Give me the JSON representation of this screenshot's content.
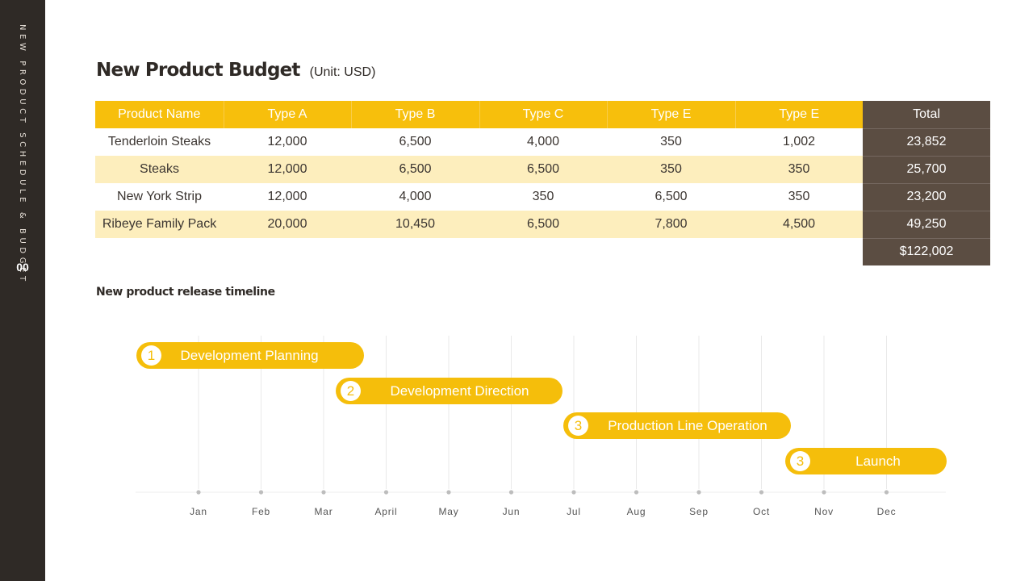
{
  "sidebar": {
    "title": "NEW PRODUCT SCHEDULE & BUDGET",
    "page_number": "00"
  },
  "header": {
    "title": "New Product Budget",
    "unit": "(Unit: USD)"
  },
  "budget_table": {
    "columns": [
      "Product Name",
      "Type A",
      "Type B",
      "Type C",
      "Type E",
      "Type E",
      "Total"
    ],
    "rows": [
      [
        "Tenderloin Steaks",
        "12,000",
        "6,500",
        "4,000",
        "350",
        "1,002",
        "23,852"
      ],
      [
        "Steaks",
        "12,000",
        "6,500",
        "6,500",
        "350",
        "350",
        "25,700"
      ],
      [
        "New York Strip",
        "12,000",
        "4,000",
        "350",
        "6,500",
        "350",
        "23,200"
      ],
      [
        "Ribeye Family Pack",
        "20,000",
        "10,450",
        "6,500",
        "7,800",
        "4,500",
        "49,250"
      ]
    ],
    "grand_total": "$122,002"
  },
  "timeline": {
    "title": "New product release timeline",
    "months": [
      "Jan",
      "Feb",
      "Mar",
      "April",
      "May",
      "Jun",
      "Jul",
      "Aug",
      "Sep",
      "Oct",
      "Nov",
      "Dec"
    ],
    "phases": [
      {
        "number": "1",
        "label": "Development Planning"
      },
      {
        "number": "2",
        "label": "Development Direction"
      },
      {
        "number": "3",
        "label": "Production Line Operation"
      },
      {
        "number": "3",
        "label": "Launch"
      }
    ]
  },
  "colors": {
    "accent": "#f5be0b",
    "dark": "#2f2a26",
    "total_bg": "#5b4d42",
    "row_alt": "#fdeebd"
  }
}
